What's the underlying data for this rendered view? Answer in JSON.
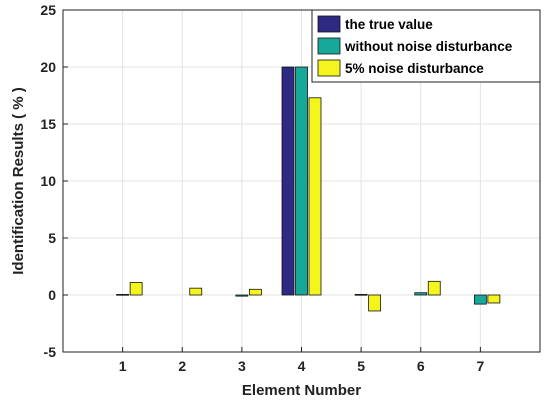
{
  "chart_data": {
    "type": "bar",
    "xlabel": "Element Number",
    "ylabel": "Identification Results ( % )",
    "categories": [
      "1",
      "2",
      "3",
      "4",
      "5",
      "6",
      "7"
    ],
    "ylim": [
      -5,
      25
    ],
    "yticks": [
      -5,
      0,
      5,
      10,
      15,
      20,
      25
    ],
    "grid": true,
    "legend_position": "top-right",
    "series": [
      {
        "name": "the true value",
        "color": "#2e2a83",
        "values": [
          0,
          0,
          0,
          20,
          0,
          0,
          0
        ]
      },
      {
        "name": "without noise disturbance",
        "color": "#16a99a",
        "values": [
          0.05,
          0,
          -0.1,
          20,
          0.05,
          0.2,
          -0.8
        ]
      },
      {
        "name": "5% noise disturbance",
        "color": "#f5f51e",
        "values": [
          1.1,
          0.6,
          0.5,
          17.3,
          -1.4,
          1.2,
          -0.7
        ]
      }
    ]
  }
}
